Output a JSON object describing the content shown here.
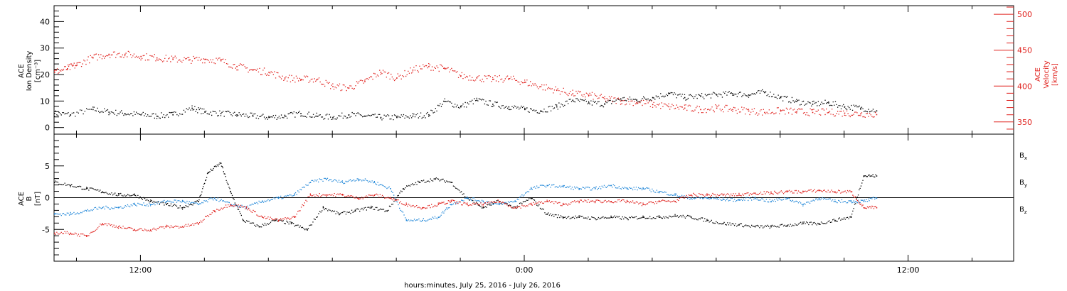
{
  "chart_data": [
    {
      "type": "scatter",
      "panel": "plasma",
      "ylabel_left": [
        "ACE",
        "Ion Density",
        "[cm⁻³]"
      ],
      "ylabel_right": [
        "ACE",
        "Velocity",
        "[km/s]"
      ],
      "x_unit": "hours since 2016-07-25 00:00 UT",
      "xlim": [
        9.3,
        39.3
      ],
      "ylim_left": [
        -2.5,
        46
      ],
      "ylim_right": [
        333,
        512
      ],
      "yticks_left": [
        0,
        10,
        20,
        30,
        40
      ],
      "yticks_right": [
        350,
        400,
        450,
        500
      ],
      "series": [
        {
          "name": "Ion Density",
          "axis": "left",
          "color": "#000000",
          "x": [
            9.3,
            9.8,
            10.5,
            11.0,
            11.5,
            12.0,
            12.5,
            13.0,
            13.6,
            14.0,
            14.5,
            15.0,
            15.5,
            16.0,
            16.5,
            17.0,
            17.5,
            18.0,
            18.5,
            19.0,
            19.5,
            20.0,
            20.5,
            21.0,
            21.5,
            22.0,
            22.5,
            23.0,
            23.5,
            24.0,
            24.5,
            25.0,
            25.5,
            26.0,
            26.5,
            27.0,
            27.5,
            28.0,
            28.5,
            29.0,
            29.5,
            30.0,
            30.5,
            31.0,
            31.5,
            32.0,
            32.5,
            33.0,
            33.5,
            34.0,
            34.5,
            35.0
          ],
          "y": [
            5.5,
            5.0,
            7.0,
            6.0,
            5.5,
            5.0,
            4.5,
            5.0,
            7.5,
            6.0,
            5.5,
            5.0,
            4.5,
            4.0,
            4.5,
            5.5,
            4.5,
            4.0,
            5.0,
            4.5,
            4.0,
            4.0,
            4.5,
            5.0,
            10.0,
            8.0,
            10.5,
            9.0,
            8.0,
            7.0,
            6.5,
            8.0,
            10.5,
            9.5,
            9.0,
            11.0,
            10.5,
            11.5,
            13.0,
            11.5,
            12.0,
            12.5,
            13.0,
            12.5,
            13.5,
            11.5,
            10.0,
            9.0,
            9.5,
            8.0,
            7.5,
            6.5
          ]
        },
        {
          "name": "Velocity",
          "axis": "right",
          "color": "#e0201c",
          "x": [
            9.3,
            9.7,
            10.0,
            10.5,
            11.0,
            11.5,
            12.0,
            12.5,
            13.0,
            13.5,
            14.0,
            14.5,
            15.0,
            15.5,
            16.0,
            16.5,
            17.0,
            17.5,
            18.0,
            18.5,
            19.0,
            19.5,
            20.0,
            20.5,
            21.0,
            21.5,
            22.0,
            22.5,
            23.0,
            23.5,
            24.0,
            24.5,
            25.0,
            25.5,
            26.0,
            26.5,
            27.0,
            27.5,
            28.0,
            28.5,
            29.0,
            29.5,
            30.0,
            30.5,
            31.0,
            31.5,
            32.0,
            32.5,
            33.0,
            33.5,
            34.0,
            34.5,
            35.0
          ],
          "y": [
            420,
            425,
            430,
            440,
            445,
            445,
            442,
            440,
            438,
            437,
            438,
            436,
            428,
            423,
            420,
            412,
            410,
            410,
            400,
            398,
            407,
            420,
            412,
            423,
            428,
            425,
            415,
            412,
            410,
            411,
            406,
            400,
            395,
            390,
            388,
            383,
            380,
            378,
            375,
            372,
            370,
            368,
            370,
            368,
            366,
            364,
            366,
            365,
            364,
            364,
            363,
            362,
            361
          ]
        }
      ]
    },
    {
      "type": "scatter",
      "panel": "magnetic",
      "ylabel_left": [
        "ACE",
        "B",
        "[nT]"
      ],
      "x_unit": "hours since 2016-07-25 00:00 UT",
      "xlim": [
        9.3,
        39.3
      ],
      "ylim": [
        -10,
        10
      ],
      "yticks": [
        -5,
        0,
        5
      ],
      "zero_line": true,
      "series": [
        {
          "name": "Bx",
          "color": "#000000",
          "x": [
            9.3,
            9.8,
            10.3,
            10.8,
            11.3,
            11.8,
            12.3,
            12.8,
            13.3,
            13.8,
            14.1,
            14.5,
            14.8,
            15.2,
            15.7,
            16.2,
            16.7,
            17.2,
            17.7,
            18.2,
            18.7,
            19.2,
            19.7,
            20.2,
            20.7,
            21.2,
            21.7,
            22.2,
            22.7,
            23.2,
            23.7,
            24.2,
            24.7,
            25.2,
            25.7,
            26.2,
            26.7,
            27.2,
            27.7,
            28.2,
            28.7,
            29.2,
            29.7,
            30.2,
            30.7,
            31.2,
            31.7,
            32.2,
            32.7,
            33.2,
            33.7,
            34.2,
            34.6,
            35.0
          ],
          "y": [
            2.5,
            2.0,
            1.5,
            1.0,
            0.5,
            0.5,
            -0.5,
            -1.0,
            -1.5,
            -0.5,
            4.0,
            5.5,
            1.0,
            -3.5,
            -4.5,
            -3.5,
            -4.0,
            -5.0,
            -1.5,
            -2.5,
            -2.0,
            -1.5,
            -2.0,
            1.5,
            2.5,
            3.0,
            2.5,
            0.0,
            -1.5,
            -0.5,
            -1.5,
            0.0,
            -2.5,
            -3.0,
            -3.0,
            -3.2,
            -3.0,
            -3.2,
            -3.0,
            -3.0,
            -2.8,
            -3.0,
            -3.5,
            -4.0,
            -4.2,
            -4.5,
            -4.5,
            -4.3,
            -4.0,
            -4.0,
            -3.5,
            -3.0,
            3.5,
            3.5
          ]
        },
        {
          "name": "By",
          "color": "#1f86d8",
          "x": [
            9.3,
            9.8,
            10.3,
            10.8,
            11.3,
            11.8,
            12.3,
            12.8,
            13.3,
            13.8,
            14.3,
            14.8,
            15.3,
            15.8,
            16.3,
            16.8,
            17.3,
            17.8,
            18.3,
            18.8,
            19.3,
            19.8,
            20.3,
            20.8,
            21.3,
            21.7,
            22.2,
            22.7,
            23.2,
            23.7,
            24.2,
            24.7,
            25.2,
            25.7,
            26.2,
            26.7,
            27.2,
            27.7,
            28.2,
            28.7,
            29.2,
            29.7,
            30.2,
            30.7,
            31.2,
            31.7,
            32.2,
            32.7,
            33.2,
            33.7,
            34.2,
            34.6,
            35.0
          ],
          "y": [
            -2.5,
            -2.5,
            -2.0,
            -1.5,
            -1.5,
            -1.0,
            -1.0,
            -0.5,
            -0.5,
            -1.0,
            0.0,
            -1.0,
            -1.5,
            -0.5,
            0.0,
            0.5,
            2.5,
            3.0,
            2.5,
            3.0,
            2.5,
            1.5,
            -3.5,
            -3.5,
            -3.0,
            -1.0,
            0.0,
            -0.5,
            -1.0,
            -0.5,
            1.5,
            2.0,
            1.8,
            1.5,
            1.5,
            2.0,
            1.5,
            1.5,
            1.0,
            0.5,
            0.0,
            0.0,
            -0.2,
            -0.3,
            0.0,
            -0.5,
            0.0,
            -1.0,
            0.0,
            -0.5,
            -0.5,
            -0.5,
            0.0
          ]
        },
        {
          "name": "Bz",
          "color": "#e0201c",
          "x": [
            9.3,
            9.8,
            10.3,
            10.8,
            11.3,
            11.8,
            12.3,
            12.8,
            13.3,
            13.8,
            14.3,
            14.8,
            15.3,
            15.8,
            16.3,
            16.8,
            17.3,
            17.8,
            18.3,
            18.8,
            19.3,
            19.8,
            20.3,
            20.8,
            21.3,
            21.7,
            22.2,
            22.7,
            23.2,
            23.7,
            24.2,
            24.7,
            25.2,
            25.7,
            26.2,
            26.7,
            27.2,
            27.7,
            28.2,
            28.7,
            29.2,
            29.7,
            30.2,
            30.7,
            31.2,
            31.7,
            32.2,
            32.7,
            33.2,
            33.7,
            34.2,
            34.6,
            35.0
          ],
          "y": [
            -5.5,
            -5.5,
            -6.0,
            -4.0,
            -4.5,
            -5.0,
            -5.0,
            -4.5,
            -4.5,
            -4.0,
            -2.0,
            -1.0,
            -1.5,
            -3.0,
            -3.5,
            -3.0,
            0.5,
            0.5,
            0.5,
            0.0,
            0.5,
            0.0,
            -1.0,
            -1.5,
            -1.0,
            -0.5,
            -1.0,
            -1.0,
            -0.5,
            -1.5,
            -1.0,
            -0.5,
            -1.0,
            -0.5,
            -0.5,
            -0.5,
            -0.5,
            -1.0,
            -0.5,
            -0.5,
            0.5,
            0.5,
            0.5,
            0.5,
            0.8,
            0.8,
            1.0,
            1.0,
            1.2,
            1.0,
            1.0,
            -1.5,
            -1.5
          ]
        }
      ]
    }
  ],
  "x_axis": {
    "ticks": [
      {
        "hour": 12,
        "label": "12:00"
      },
      {
        "hour": 24,
        "label": "0:00"
      },
      {
        "hour": 36,
        "label": "12:00"
      }
    ],
    "minor_step_hours": 2,
    "xlabel": "hours:minutes, July 25, 2016 - July 26, 2016"
  },
  "legend": [
    {
      "label": "B",
      "sub": "x",
      "color": "#000000"
    },
    {
      "label": "B",
      "sub": "y",
      "color": "#1f86d8"
    },
    {
      "label": "B",
      "sub": "z",
      "color": "#e0201c"
    }
  ]
}
